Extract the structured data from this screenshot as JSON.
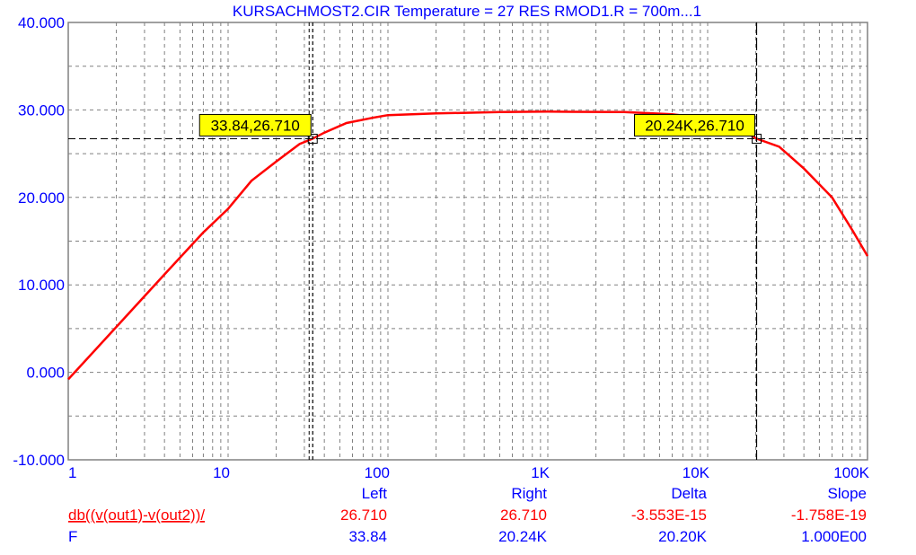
{
  "chart_data": {
    "type": "line",
    "title": "KURSACHMOST2.CIR Temperature = 27 RES RMOD1.R = 700m...1",
    "xscale": "log",
    "xlim": [
      1,
      100000
    ],
    "ylim": [
      -10,
      40
    ],
    "x_ticks": [
      1,
      10,
      100,
      1000,
      10000,
      100000
    ],
    "x_tick_labels": [
      "1",
      "10",
      "100",
      "1K",
      "10K",
      "100K"
    ],
    "y_ticks": [
      -10,
      0,
      10,
      20,
      30,
      40
    ],
    "y_tick_labels": [
      "-10.000",
      "0.000",
      "10.000",
      "20.000",
      "30.000",
      "40.000"
    ],
    "grid": true,
    "series": [
      {
        "name": "db((v(out1)-v(out2))/",
        "color": "#ff0000",
        "x": [
          1,
          2,
          4,
          7,
          10,
          14,
          20,
          28,
          33.84,
          40,
          55,
          80,
          100,
          200,
          500,
          1000,
          3000,
          6000,
          10000,
          15000,
          20240,
          28000,
          40000,
          60000,
          80000,
          100000
        ],
        "y": [
          -0.8,
          5.2,
          11.2,
          16,
          18.7,
          21.9,
          24.1,
          26.1,
          26.71,
          27.4,
          28.5,
          29.1,
          29.4,
          29.6,
          29.75,
          29.8,
          29.75,
          29.5,
          29.0,
          28.1,
          26.71,
          25.8,
          23.3,
          20.0,
          16.3,
          13.3
        ]
      }
    ],
    "cursors": [
      {
        "label": "33.84,26.710",
        "x": 33.84,
        "y": 26.71
      },
      {
        "label": "20.24K,26.710",
        "x": 20240,
        "y": 26.71
      }
    ]
  },
  "readout": {
    "headers": [
      "Left",
      "Right",
      "Delta",
      "Slope"
    ],
    "rows": [
      {
        "name": "db((v(out1)-v(out2))/",
        "values": [
          "26.710",
          "26.710",
          "-3.553E-15",
          "-1.758E-19"
        ],
        "color": "#ff0000"
      },
      {
        "name": "F",
        "values": [
          "33.84",
          "20.24K",
          "20.20K",
          "1.000E00"
        ],
        "color": "#0000ff"
      }
    ]
  }
}
